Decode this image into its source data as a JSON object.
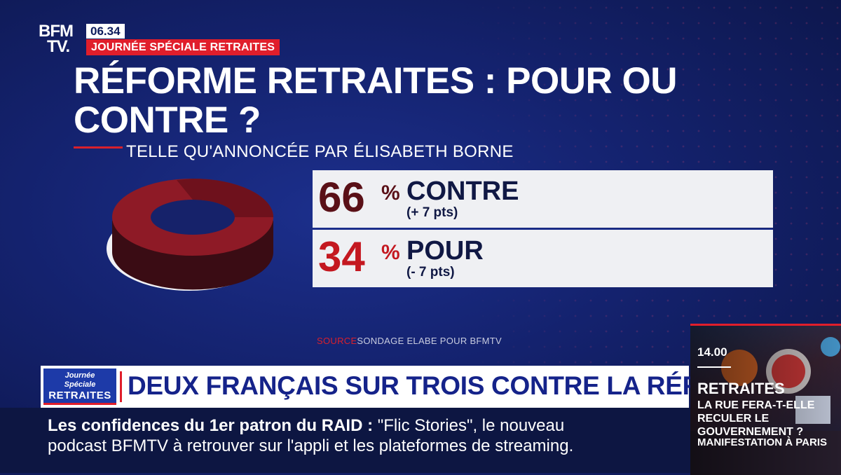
{
  "channel": {
    "logo_line1": "BFM",
    "logo_line2": "TV.",
    "time": "06.34",
    "special": "JOURNÉE SPÉCIALE RETRAITES"
  },
  "graphic": {
    "title": "RÉFORME RETRAITES : POUR OU CONTRE ?",
    "subtitle": "TELLE QU'ANNONCÉE PAR ÉLISABETH BORNE",
    "results": [
      {
        "value": "66",
        "unit": "%",
        "label": "CONTRE",
        "delta": "(+ 7 pts)"
      },
      {
        "value": "34",
        "unit": "%",
        "label": "POUR",
        "delta": "(- 7 pts)"
      }
    ],
    "source_label": "SOURCE",
    "source_text": "SONDAGE ELABE POUR BFMTV",
    "colors": {
      "contre": "#5a1017",
      "pour": "#c41820",
      "accent": "#e01e2b"
    }
  },
  "chart_data": {
    "type": "pie",
    "categories": [
      "CONTRE",
      "POUR"
    ],
    "values": [
      66,
      34
    ]
  },
  "headline": {
    "badge_line1": "Journée",
    "badge_line2": "Spéciale",
    "badge_line3": "RETRAITES",
    "text": "DEUX FRANÇAIS SUR TROIS CONTRE LA RÉFORME"
  },
  "ticker": {
    "bold": "Les confidences du 1er patron du RAID  :",
    "line1_rest": " \"Flic Stories\", le nouveau",
    "line2": "podcast BFMTV à retrouver sur l'appli et les plateformes de streaming."
  },
  "next_program": {
    "time": "14.00",
    "title": "RETRAITES",
    "subtitle": "LA RUE FERA-T-ELLE RECULER LE GOUVERNEMENT ?",
    "detail": "MANIFESTATION À PARIS"
  }
}
